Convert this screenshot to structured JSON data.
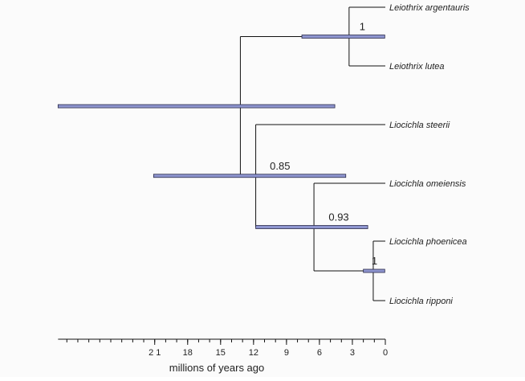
{
  "tree": {
    "tips": [
      {
        "id": "t1",
        "label": "Leiothrix argentauris"
      },
      {
        "id": "t2",
        "label": "Leiothrix lutea"
      },
      {
        "id": "t3",
        "label": "Liocichla steerii"
      },
      {
        "id": "t4",
        "label": "Liocichla omeiensis"
      },
      {
        "id": "t5",
        "label": "Liocichla phoenicea"
      },
      {
        "id": "t6",
        "label": "Liocichla ripponi"
      }
    ],
    "nodes": [
      {
        "id": "root",
        "age_ma": 13.2,
        "hpd_ma": [
          29.8,
          4.6
        ],
        "support": "",
        "children": [
          "n_leio",
          "n_lioc"
        ]
      },
      {
        "id": "n_leio",
        "age_ma": 3.3,
        "hpd_ma": [
          7.6,
          0.05
        ],
        "support": "1",
        "children": [
          "t1",
          "t2"
        ]
      },
      {
        "id": "n_lioc",
        "age_ma": 11.8,
        "hpd_ma": [
          21.1,
          3.6
        ],
        "support": "0.85",
        "children": [
          "t3",
          "n_omei"
        ]
      },
      {
        "id": "n_omei",
        "age_ma": 6.5,
        "hpd_ma": [
          11.8,
          1.6
        ],
        "support": "0.93",
        "children": [
          "t4",
          "n_phoe"
        ]
      },
      {
        "id": "n_phoe",
        "age_ma": 1.1,
        "hpd_ma": [
          2.0,
          0.05
        ],
        "support": "1",
        "children": [
          "t5",
          "t6"
        ]
      }
    ]
  },
  "axis": {
    "title": "millions of years ago",
    "max_ma": 29.8,
    "minor_step_ma": 1,
    "ticks": [
      {
        "value": 21,
        "label": "2 1"
      },
      {
        "value": 18,
        "label": "18"
      },
      {
        "value": 15,
        "label": "15"
      },
      {
        "value": 12,
        "label": "12"
      },
      {
        "value": 9,
        "label": "9"
      },
      {
        "value": 6,
        "label": "6"
      },
      {
        "value": 3,
        "label": "3"
      },
      {
        "value": 0,
        "label": "0"
      }
    ]
  },
  "colors": {
    "hpd_bar": "#8e95cf",
    "branch": "#111111",
    "background": "#fbfbfb"
  }
}
